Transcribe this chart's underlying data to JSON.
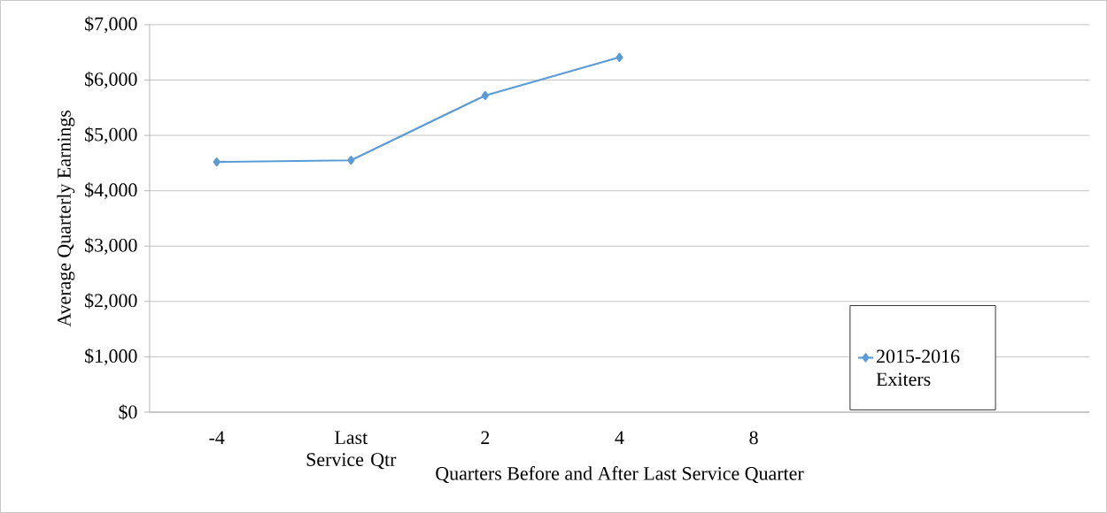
{
  "chart_data": {
    "type": "line",
    "xlabel": "Quarters Before and After Last Service Quarter",
    "ylabel": "Average Quarterly Earnings",
    "categories": [
      "-4",
      "Last Service Qtr",
      "2",
      "4",
      "8",
      null,
      null
    ],
    "series": [
      {
        "name": "2015-2016 Exiters",
        "color": "#5b9bd5",
        "values": [
          4520,
          4550,
          5720,
          6410,
          null,
          null,
          null
        ]
      }
    ],
    "ylim": [
      0,
      7000
    ],
    "yticks": [
      {
        "value": 0,
        "label": "$0"
      },
      {
        "value": 1000,
        "label": "$1,000"
      },
      {
        "value": 2000,
        "label": "$2,000"
      },
      {
        "value": 3000,
        "label": "$3,000"
      },
      {
        "value": 4000,
        "label": "$4,000"
      },
      {
        "value": 5000,
        "label": "$5,000"
      },
      {
        "value": 6000,
        "label": "$6,000"
      },
      {
        "value": 7000,
        "label": "$7,000"
      }
    ],
    "grid": "y",
    "legend": "right",
    "marker": "diamond",
    "line_style": "solid"
  }
}
